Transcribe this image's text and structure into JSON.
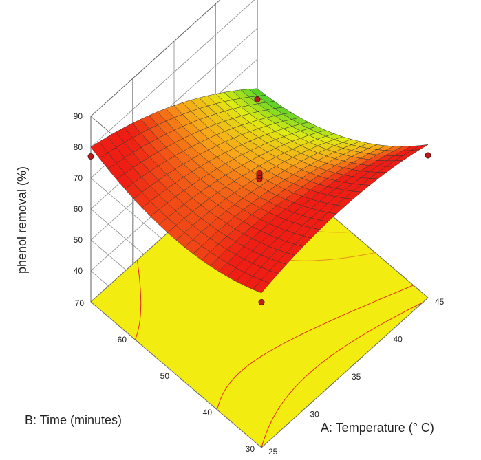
{
  "chart_data": {
    "type": "surface3d",
    "title": "",
    "xlabel": "A: Temperature (° C)",
    "ylabel": "B: Time (minutes)",
    "zlabel": "phenol removal (%)",
    "x_ticks": [
      "25",
      "30",
      "35",
      "40",
      "45"
    ],
    "y_ticks": [
      "30",
      "40",
      "50",
      "60",
      "70"
    ],
    "z_ticks": [
      "40",
      "50",
      "60",
      "70",
      "80",
      "90"
    ],
    "xlim": [
      25,
      45
    ],
    "ylim": [
      30,
      70
    ],
    "zlim": [
      30,
      90
    ],
    "grid": true,
    "colormap": "green-yellow-orange-red",
    "floor_color": "#f2ec10",
    "design_points": [
      {
        "x": 25,
        "y": 70,
        "z": 77
      },
      {
        "x": 25,
        "y": 30,
        "z": 77
      },
      {
        "x": 45,
        "y": 30,
        "z": 76
      },
      {
        "x": 45,
        "y": 70,
        "z": 47
      },
      {
        "x": 35,
        "y": 50,
        "z": 69
      },
      {
        "x": 35,
        "y": 50,
        "z": 70
      },
      {
        "x": 35,
        "y": 50,
        "z": 71
      }
    ]
  }
}
